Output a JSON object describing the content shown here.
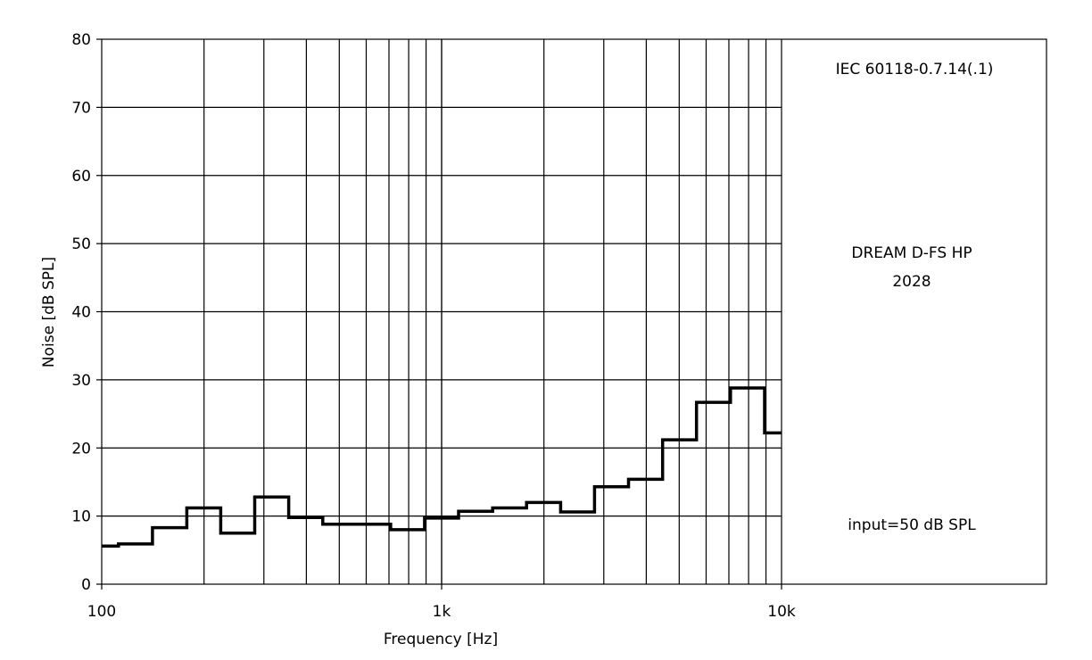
{
  "chart_data": {
    "type": "line",
    "step": true,
    "xscale": "log",
    "xlim": [
      100,
      10000
    ],
    "ylim": [
      0,
      80
    ],
    "xlabel": "Frequency [Hz]",
    "ylabel": "Noise [dB SPL]",
    "x_ticks": [
      {
        "value": 100,
        "label": "100"
      },
      {
        "value": 1000,
        "label": "1k"
      },
      {
        "value": 10000,
        "label": "10k"
      }
    ],
    "y_ticks": [
      0,
      10,
      20,
      30,
      40,
      50,
      60,
      70,
      80
    ],
    "grid": true,
    "series": [
      {
        "color": "#000000",
        "bands": [
          {
            "from": 100,
            "to": 112,
            "y": 5.6
          },
          {
            "from": 112,
            "to": 141,
            "y": 5.9
          },
          {
            "from": 141,
            "to": 178,
            "y": 8.3
          },
          {
            "from": 178,
            "to": 224,
            "y": 11.2
          },
          {
            "from": 224,
            "to": 282,
            "y": 7.5
          },
          {
            "from": 282,
            "to": 355,
            "y": 12.8
          },
          {
            "from": 355,
            "to": 447,
            "y": 9.8
          },
          {
            "from": 447,
            "to": 562,
            "y": 8.8
          },
          {
            "from": 562,
            "to": 708,
            "y": 8.8
          },
          {
            "from": 708,
            "to": 891,
            "y": 8.0
          },
          {
            "from": 891,
            "to": 1122,
            "y": 9.7
          },
          {
            "from": 1122,
            "to": 1413,
            "y": 10.7
          },
          {
            "from": 1413,
            "to": 1778,
            "y": 11.2
          },
          {
            "from": 1778,
            "to": 2239,
            "y": 12.0
          },
          {
            "from": 2239,
            "to": 2818,
            "y": 10.6
          },
          {
            "from": 2818,
            "to": 3548,
            "y": 14.3
          },
          {
            "from": 3548,
            "to": 4467,
            "y": 15.4
          },
          {
            "from": 4467,
            "to": 5623,
            "y": 21.2
          },
          {
            "from": 5623,
            "to": 7079,
            "y": 26.7
          },
          {
            "from": 7079,
            "to": 8913,
            "y": 28.8
          },
          {
            "from": 8913,
            "to": 10000,
            "y": 22.2
          }
        ]
      }
    ],
    "annotations": [
      {
        "text": "IEC 60118-0.7.14(.1)"
      },
      {
        "text": "DREAM D-FS HP"
      },
      {
        "text": "2028"
      },
      {
        "text": "input=50 dB SPL"
      }
    ]
  }
}
